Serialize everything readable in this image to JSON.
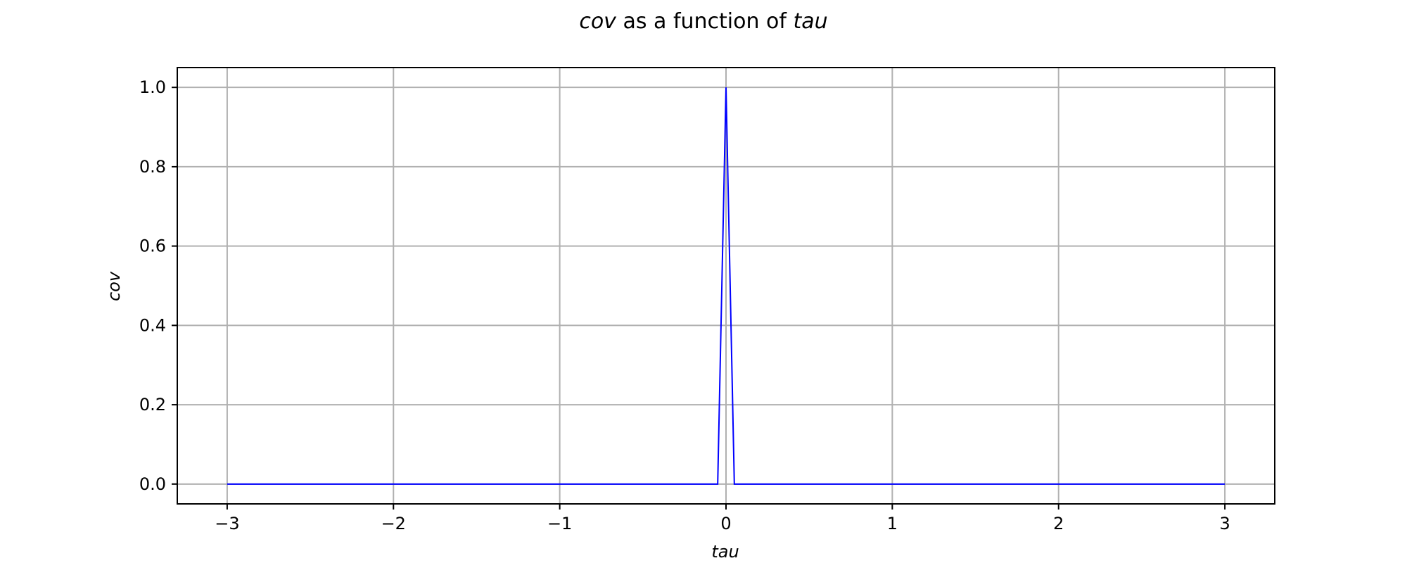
{
  "chart_data": {
    "type": "line",
    "title_parts": [
      "cov",
      " as a function of ",
      "tau"
    ],
    "xlabel": "tau",
    "ylabel": "cov",
    "xlim": [
      -3.3,
      3.3
    ],
    "ylim": [
      -0.05,
      1.05
    ],
    "xticks": [
      -3,
      -2,
      -1,
      0,
      1,
      2,
      3
    ],
    "xtick_labels": [
      "−3",
      "−2",
      "−1",
      "0",
      "1",
      "2",
      "3"
    ],
    "yticks": [
      0.0,
      0.2,
      0.4,
      0.6,
      0.8,
      1.0
    ],
    "ytick_labels": [
      "0.0",
      "0.2",
      "0.4",
      "0.6",
      "0.8",
      "1.0"
    ],
    "grid": true,
    "series": [
      {
        "color": "#0000ff",
        "x": [
          -3.0,
          -0.05,
          0.0,
          0.05,
          3.0
        ],
        "y": [
          0.0,
          0.0,
          1.0,
          0.0,
          0.0
        ]
      }
    ]
  }
}
